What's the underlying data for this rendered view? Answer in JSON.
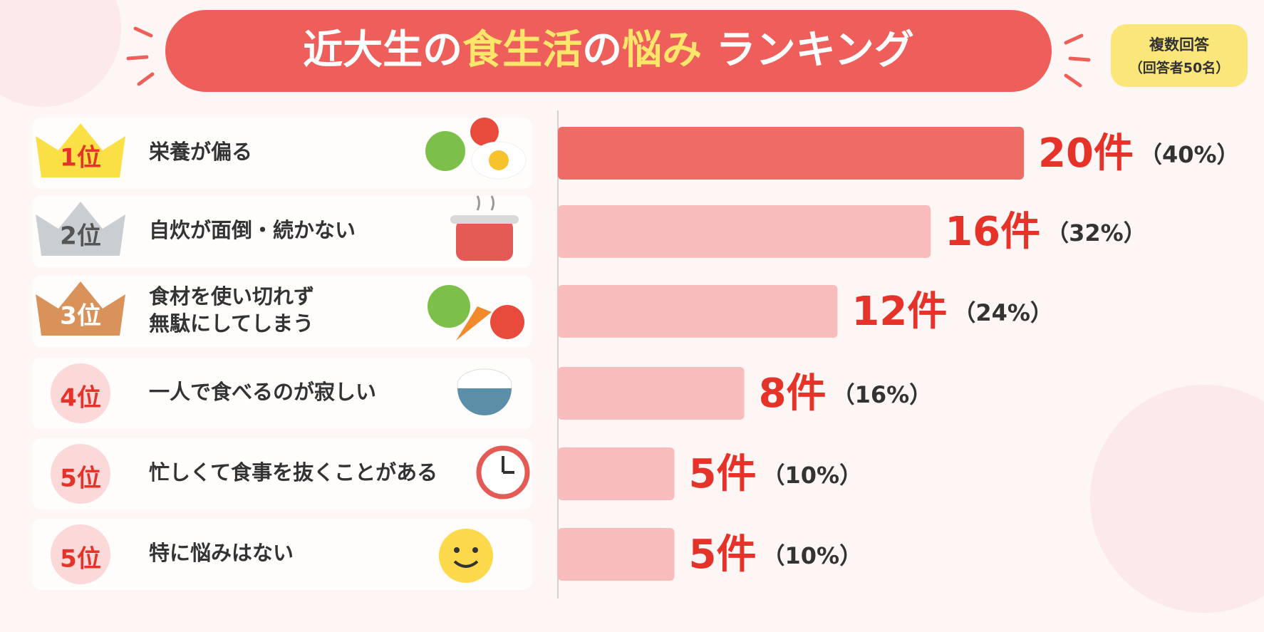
{
  "title_parts": [
    {
      "text": "近大生の",
      "color": "#ffffff"
    },
    {
      "text": "食生活",
      "color": "#ffe66b"
    },
    {
      "text": "の",
      "color": "#ffffff"
    },
    {
      "text": "悩み",
      "color": "#ffe66b"
    },
    {
      "text": " ランキング",
      "color": "#ffffff"
    }
  ],
  "badge": [
    "複数回答",
    "（回答者50名）"
  ],
  "chart_data": {
    "type": "bar",
    "ranks": [
      "1位",
      "2位",
      "3位",
      "4位",
      "5位",
      "5位"
    ],
    "categories": [
      [
        "栄養が偏る"
      ],
      [
        "自炊が面倒・続かない"
      ],
      [
        "食材を使い切れず",
        "無駄にしてしまう"
      ],
      [
        "一人で食べるのが寂しい"
      ],
      [
        "忙しくて食事を抜くことがある"
      ],
      [
        "特に悩みはない"
      ]
    ],
    "values": [
      20,
      16,
      12,
      8,
      5,
      5
    ],
    "value_labels": [
      "20件",
      "16件",
      "12件",
      "8件",
      "5件",
      "5件"
    ],
    "percentages": [
      40,
      32,
      24,
      16,
      10,
      10
    ],
    "percentage_labels": [
      "（40%）",
      "（32%）",
      "（24%）",
      "（16%）",
      "（10%）",
      "（10%）"
    ],
    "colors": [
      "#ef6b66",
      "#f9bcbc",
      "#f9bcbc",
      "#f9bcbc",
      "#f9bcbc",
      "#f9bcbc"
    ]
  }
}
